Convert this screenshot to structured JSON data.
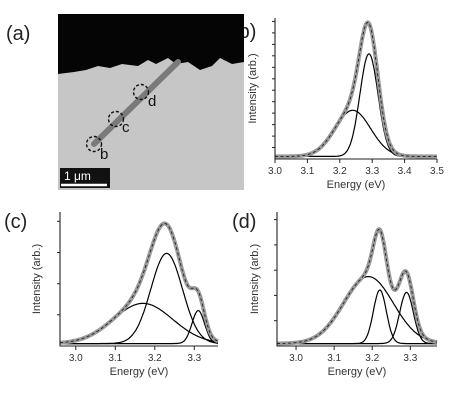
{
  "panel_labels": {
    "a": "(a)",
    "b": "(b)",
    "c": "(c)",
    "d": "(d)"
  },
  "image_panel": {
    "markers": [
      "b",
      "c",
      "d"
    ],
    "scale_bar": "1 μm"
  },
  "colors": {
    "fit_total": "#9a9a9a",
    "component": "#000000",
    "data": "#222222"
  },
  "chart_data": [
    {
      "id": "b",
      "type": "line",
      "xlabel": "Energy (eV)",
      "ylabel": "Intensity (arb.)",
      "xlim": [
        3.0,
        3.5
      ],
      "ylim": [
        0,
        1.1
      ],
      "xticks": [
        "3.0",
        "3.1",
        "3.2",
        "3.3",
        "3.4",
        "3.5"
      ],
      "yticks_count": 12,
      "components": [
        {
          "center": 3.29,
          "amplitude": 0.8,
          "width": 0.028
        },
        {
          "center": 3.24,
          "amplitude": 0.36,
          "width": 0.055
        }
      ],
      "baseline": 0.02
    },
    {
      "id": "c",
      "type": "line",
      "xlabel": "Energy (eV)",
      "ylabel": "Intensity (arb.)",
      "xlim": [
        2.96,
        3.36
      ],
      "ylim": [
        0,
        1.1
      ],
      "xticks": [
        "3.0",
        "3.1",
        "3.2",
        "3.3"
      ],
      "yticks_count": 4,
      "components": [
        {
          "center": 3.23,
          "amplitude": 0.74,
          "width": 0.04
        },
        {
          "center": 3.17,
          "amplitude": 0.33,
          "width": 0.075
        },
        {
          "center": 3.31,
          "amplitude": 0.27,
          "width": 0.016
        }
      ],
      "baseline": 0.02
    },
    {
      "id": "d",
      "type": "line",
      "xlabel": "Energy (eV)",
      "ylabel": "Intensity (arb.)",
      "xlim": [
        2.95,
        3.37
      ],
      "ylim": [
        0,
        1.1
      ],
      "xticks": [
        "3.0",
        "3.1",
        "3.2",
        "3.3"
      ],
      "yticks_count": 5,
      "components": [
        {
          "center": 3.19,
          "amplitude": 0.55,
          "width": 0.065
        },
        {
          "center": 3.22,
          "amplitude": 0.44,
          "width": 0.017
        },
        {
          "center": 3.29,
          "amplitude": 0.42,
          "width": 0.018
        }
      ],
      "baseline": 0.02
    }
  ]
}
